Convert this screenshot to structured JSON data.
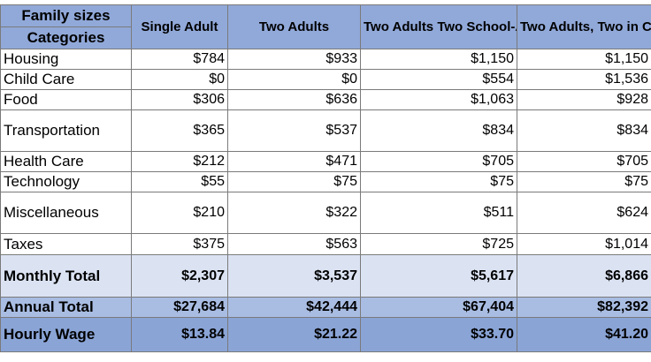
{
  "header": {
    "corner_top": "Family sizes",
    "corner_bottom": "Categories",
    "columns": [
      "Single Adult",
      "Two Adults",
      "Two Adults Two School-Age Children",
      "Two Adults, Two in Child Care"
    ]
  },
  "rows": [
    {
      "category": "Housing",
      "values": [
        "$784",
        "$933",
        "$1,150",
        "$1,150"
      ]
    },
    {
      "category": "Child Care",
      "values": [
        "$0",
        "$0",
        "$554",
        "$1,536"
      ]
    },
    {
      "category": "Food",
      "values": [
        "$306",
        "$636",
        "$1,063",
        "$928"
      ]
    },
    {
      "category": "Transportation",
      "values": [
        "$365",
        "$537",
        "$834",
        "$834"
      ]
    },
    {
      "category": "Health Care",
      "values": [
        "$212",
        "$471",
        "$705",
        "$705"
      ]
    },
    {
      "category": "Technology",
      "values": [
        "$55",
        "$75",
        "$75",
        "$75"
      ]
    },
    {
      "category": "Miscellaneous",
      "values": [
        "$210",
        "$322",
        "$511",
        "$624"
      ]
    },
    {
      "category": "Taxes",
      "values": [
        "$375",
        "$563",
        "$725",
        "$1,014"
      ]
    }
  ],
  "summary": {
    "monthly": {
      "label": "Monthly Total",
      "values": [
        "$2,307",
        "$3,537",
        "$5,617",
        "$6,866"
      ]
    },
    "annual": {
      "label": "Annual Total",
      "values": [
        "$27,684",
        "$42,444",
        "$67,404",
        "$82,392"
      ]
    },
    "hourly": {
      "label": "Hourly Wage",
      "values": [
        "$13.84",
        "$21.22",
        "$33.70",
        "$41.20"
      ]
    }
  },
  "colors": {
    "header_bg": "#91a9d9",
    "monthly_bg": "#dbe3f3",
    "annual_bg": "#a9bde3",
    "hourly_bg": "#8aa4d6"
  }
}
